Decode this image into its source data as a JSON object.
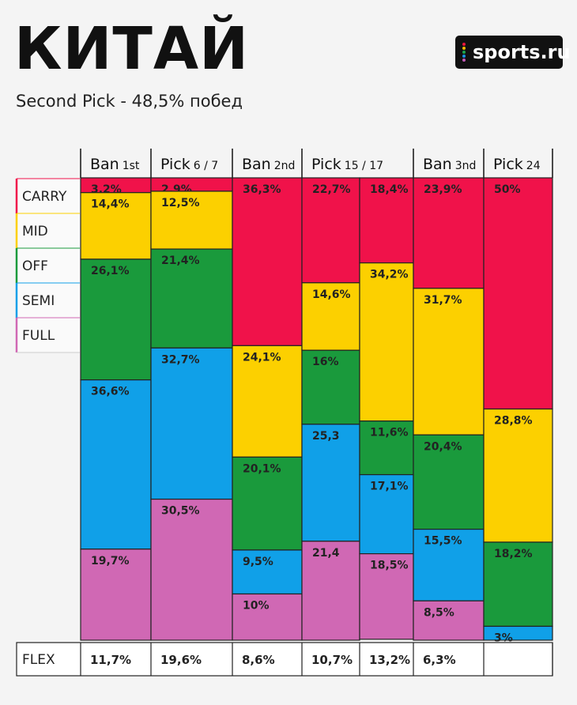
{
  "title": "КИТАЙ",
  "subtitle": "Second Pick - 48,5% побед",
  "logo": {
    "text": "sports.ru",
    "dot_colors": [
      "#e8163c",
      "#f5b800",
      "#1aa64a",
      "#1a8fe0",
      "#c25bb8"
    ]
  },
  "colors": {
    "CARRY": "#f0124a",
    "MID": "#fcd000",
    "OFF": "#1a9a3c",
    "SEMI": "#10a0e8",
    "FULL": "#d068b4"
  },
  "chart_data": {
    "type": "bar",
    "stacked": true,
    "normalized": true,
    "categories": [
      {
        "main": "Ban",
        "sub": "1st"
      },
      {
        "main": "Pick",
        "sub": "6 / 7"
      },
      {
        "main": "Ban",
        "sub": "2nd"
      },
      {
        "main": "Pick",
        "sub": "15 / 17"
      },
      {
        "main": "Ban",
        "sub": "3nd"
      },
      {
        "main": "Pick",
        "sub": "24"
      }
    ],
    "legend": [
      "CARRY",
      "MID",
      "OFF",
      "SEMI",
      "FULL"
    ],
    "flex_label": "FLEX",
    "columns": [
      {
        "group": 0,
        "segments": [
          {
            "role": "CARRY",
            "value": 3.2,
            "label": "3,2%"
          },
          {
            "role": "MID",
            "value": 14.4,
            "label": "14,4%"
          },
          {
            "role": "OFF",
            "value": 26.1,
            "label": "26,1%"
          },
          {
            "role": "SEMI",
            "value": 36.6,
            "label": "36,6%"
          },
          {
            "role": "FULL",
            "value": 19.7,
            "label": "19,7%"
          }
        ],
        "flex": "11,7%"
      },
      {
        "group": 1,
        "segments": [
          {
            "role": "CARRY",
            "value": 2.9,
            "label": "2,9%"
          },
          {
            "role": "MID",
            "value": 12.5,
            "label": "12,5%"
          },
          {
            "role": "OFF",
            "value": 21.4,
            "label": "21,4%"
          },
          {
            "role": "SEMI",
            "value": 32.7,
            "label": "32,7%"
          },
          {
            "role": "FULL",
            "value": 30.5,
            "label": "30,5%"
          }
        ],
        "flex": "19,6%"
      },
      {
        "group": 2,
        "segments": [
          {
            "role": "CARRY",
            "value": 36.3,
            "label": "36,3%"
          },
          {
            "role": "MID",
            "value": 24.1,
            "label": "24,1%"
          },
          {
            "role": "OFF",
            "value": 20.1,
            "label": "20,1%"
          },
          {
            "role": "SEMI",
            "value": 9.5,
            "label": "9,5%"
          },
          {
            "role": "FULL",
            "value": 10,
            "label": "10%"
          }
        ],
        "flex": "8,6%"
      },
      {
        "group": 3,
        "segments": [
          {
            "role": "CARRY",
            "value": 22.7,
            "label": "22,7%"
          },
          {
            "role": "MID",
            "value": 14.6,
            "label": "14,6%"
          },
          {
            "role": "OFF",
            "value": 16,
            "label": "16%"
          },
          {
            "role": "SEMI",
            "value": 25.3,
            "label": "25,3"
          },
          {
            "role": "FULL",
            "value": 21.4,
            "label": "21,4"
          }
        ],
        "flex": "10,7%"
      },
      {
        "group": 3,
        "segments": [
          {
            "role": "CARRY",
            "value": 18.4,
            "label": "18,4%"
          },
          {
            "role": "MID",
            "value": 34.2,
            "label": "34,2%"
          },
          {
            "role": "OFF",
            "value": 11.6,
            "label": "11,6%"
          },
          {
            "role": "SEMI",
            "value": 17.1,
            "label": "17,1%"
          },
          {
            "role": "FULL",
            "value": 18.5,
            "label": "18,5%"
          }
        ],
        "flex": "13,2%"
      },
      {
        "group": 4,
        "segments": [
          {
            "role": "CARRY",
            "value": 23.9,
            "label": "23,9%"
          },
          {
            "role": "MID",
            "value": 31.7,
            "label": "31,7%"
          },
          {
            "role": "OFF",
            "value": 20.4,
            "label": "20,4%"
          },
          {
            "role": "SEMI",
            "value": 15.5,
            "label": "15,5%"
          },
          {
            "role": "FULL",
            "value": 8.5,
            "label": "8,5%"
          }
        ],
        "flex": "6,3%"
      },
      {
        "group": 5,
        "segments": [
          {
            "role": "CARRY",
            "value": 50,
            "label": "50%"
          },
          {
            "role": "MID",
            "value": 28.8,
            "label": "28,8%"
          },
          {
            "role": "OFF",
            "value": 18.2,
            "label": "18,2%"
          },
          {
            "role": "SEMI",
            "value": 3,
            "label": "3%"
          }
        ],
        "flex": ""
      }
    ]
  }
}
